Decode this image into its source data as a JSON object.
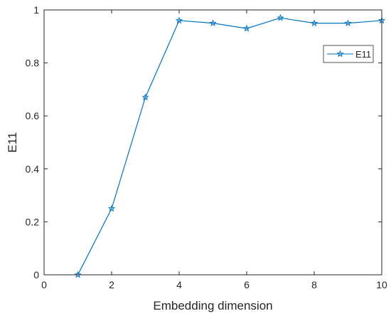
{
  "chart_data": {
    "type": "line",
    "title": "",
    "xlabel": "Embedding dimension",
    "ylabel": "E11",
    "xlim": [
      0,
      10
    ],
    "ylim": [
      0,
      1
    ],
    "xticks": [
      0,
      2,
      4,
      6,
      8,
      10
    ],
    "yticks": [
      0,
      0.2,
      0.4,
      0.6,
      0.8,
      1
    ],
    "xtick_labels": [
      "0",
      "2",
      "4",
      "6",
      "8",
      "10"
    ],
    "ytick_labels": [
      "0",
      "0.2",
      "0.4",
      "0.6",
      "0.8",
      "1"
    ],
    "grid": false,
    "legend": {
      "placement": "top-right",
      "entries": [
        "E11"
      ]
    },
    "series": [
      {
        "name": "E11",
        "color": "#0072BD",
        "marker": "star",
        "x": [
          1,
          2,
          3,
          4,
          5,
          6,
          7,
          8,
          9,
          10
        ],
        "y": [
          0.0,
          0.25,
          0.67,
          0.96,
          0.95,
          0.93,
          0.97,
          0.95,
          0.95,
          0.96
        ]
      }
    ]
  }
}
